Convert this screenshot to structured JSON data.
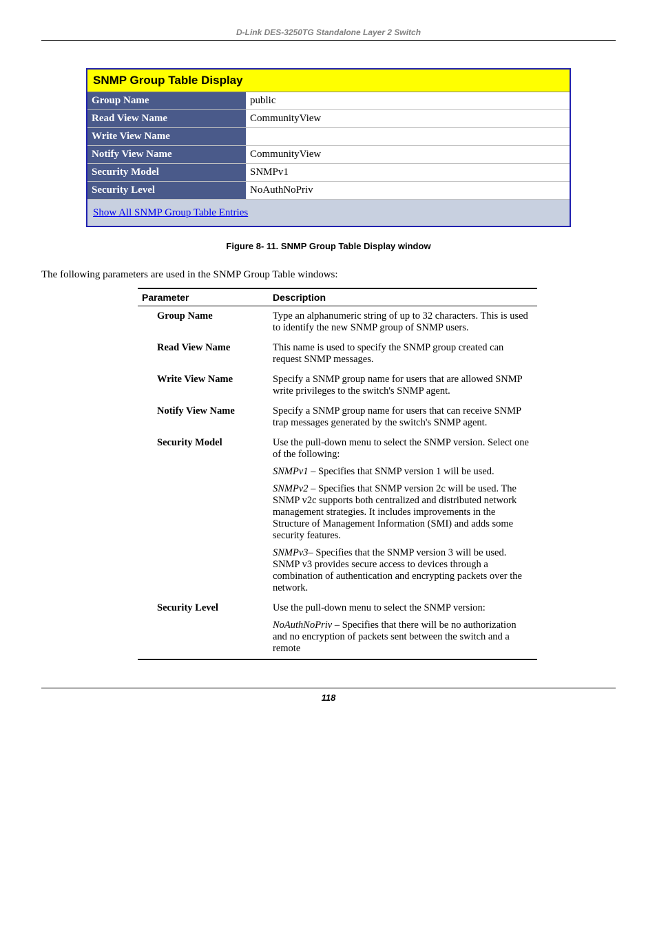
{
  "header": {
    "text": "D-Link DES-3250TG Standalone Layer 2 Switch"
  },
  "panel": {
    "title": "SNMP Group Table Display",
    "rows": [
      {
        "label": "Group Name",
        "value": "public"
      },
      {
        "label": "Read View Name",
        "value": "CommunityView"
      },
      {
        "label": "Write View Name",
        "value": ""
      },
      {
        "label": "Notify View Name",
        "value": "CommunityView"
      },
      {
        "label": "Security Model",
        "value": "SNMPv1"
      },
      {
        "label": "Security Level",
        "value": "NoAuthNoPriv"
      }
    ],
    "footer_link": "Show All SNMP Group Table Entries"
  },
  "figure_caption": "Figure 8- 11.  SNMP Group Table Display window",
  "body_text": "The following parameters are used in the SNMP Group Table windows:",
  "param_table": {
    "header": {
      "param": "Parameter",
      "desc": "Description"
    },
    "rows": [
      {
        "name": "Group Name",
        "paras": [
          "Type an alphanumeric string of up to 32 characters. This is used to identify the new SNMP group of SNMP users."
        ]
      },
      {
        "name": "Read View Name",
        "paras": [
          "This name is used to specify the SNMP group created can request SNMP messages."
        ]
      },
      {
        "name": "Write View Name",
        "paras": [
          "Specify a SNMP group name for users that are allowed SNMP write privileges to the switch's SNMP agent."
        ]
      },
      {
        "name": "Notify View Name",
        "paras": [
          "Specify a SNMP group name for users that can receive SNMP trap messages generated by the switch's SNMP agent."
        ]
      },
      {
        "name": "Security Model",
        "paras": [
          "Use the pull-down menu to select the SNMP version. Select one of the following:",
          "<i>SNMPv1</i> – Specifies that SNMP version 1 will be used.",
          "<i>SNMPv2</i> – Specifies that SNMP version 2c will be used. The SNMP v2c supports both centralized and distributed network management strategies. It includes improvements in the Structure of Management Information (SMI) and adds some security features.",
          "<i>SNMPv3</i>– Specifies that the SNMP version 3 will be used. SNMP v3 provides secure access to devices through a combination of authentication and encrypting packets over the network."
        ]
      },
      {
        "name": "Security Level",
        "paras": [
          "Use the pull-down menu to select the SNMP version:",
          "<i>NoAuthNoPriv</i> – Specifies that there will be no authorization and no encryption of packets sent between the switch and a remote"
        ]
      }
    ]
  },
  "page_number": "118"
}
